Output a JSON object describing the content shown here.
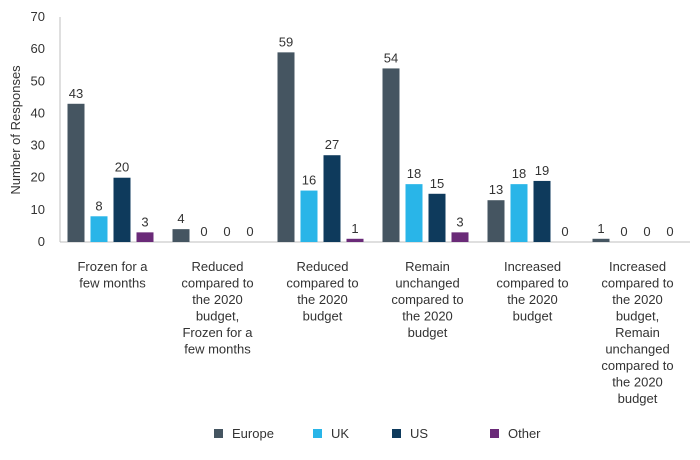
{
  "chart_data": {
    "type": "bar",
    "ylabel": "Number of Responses",
    "xlabel": "",
    "ylim": [
      0,
      70
    ],
    "yticks": [
      0,
      10,
      20,
      30,
      40,
      50,
      60,
      70
    ],
    "grid": false,
    "legend_position": "bottom",
    "categories": [
      [
        "Frozen for a",
        "few months"
      ],
      [
        "Reduced",
        "compared to",
        "the 2020",
        "budget,",
        "Frozen for a",
        "few months"
      ],
      [
        "Reduced",
        "compared to",
        "the 2020",
        "budget"
      ],
      [
        "Remain",
        "unchanged",
        "compared to",
        "the 2020",
        "budget"
      ],
      [
        "Increased",
        "compared to",
        "the 2020",
        "budget"
      ],
      [
        "Increased",
        "compared to",
        "the 2020",
        "budget,",
        "Remain",
        "unchanged",
        "compared to",
        "the 2020",
        "budget"
      ]
    ],
    "series": [
      {
        "name": "Europe",
        "color": "#455561",
        "values": [
          43,
          4,
          59,
          54,
          13,
          1
        ]
      },
      {
        "name": "UK",
        "color": "#29b5e8",
        "values": [
          8,
          0,
          16,
          18,
          18,
          0
        ]
      },
      {
        "name": "US",
        "color": "#0e3a5c",
        "values": [
          20,
          0,
          27,
          15,
          19,
          0
        ]
      },
      {
        "name": "Other",
        "color": "#6a2a78",
        "values": [
          3,
          0,
          1,
          3,
          0,
          0
        ]
      }
    ]
  }
}
